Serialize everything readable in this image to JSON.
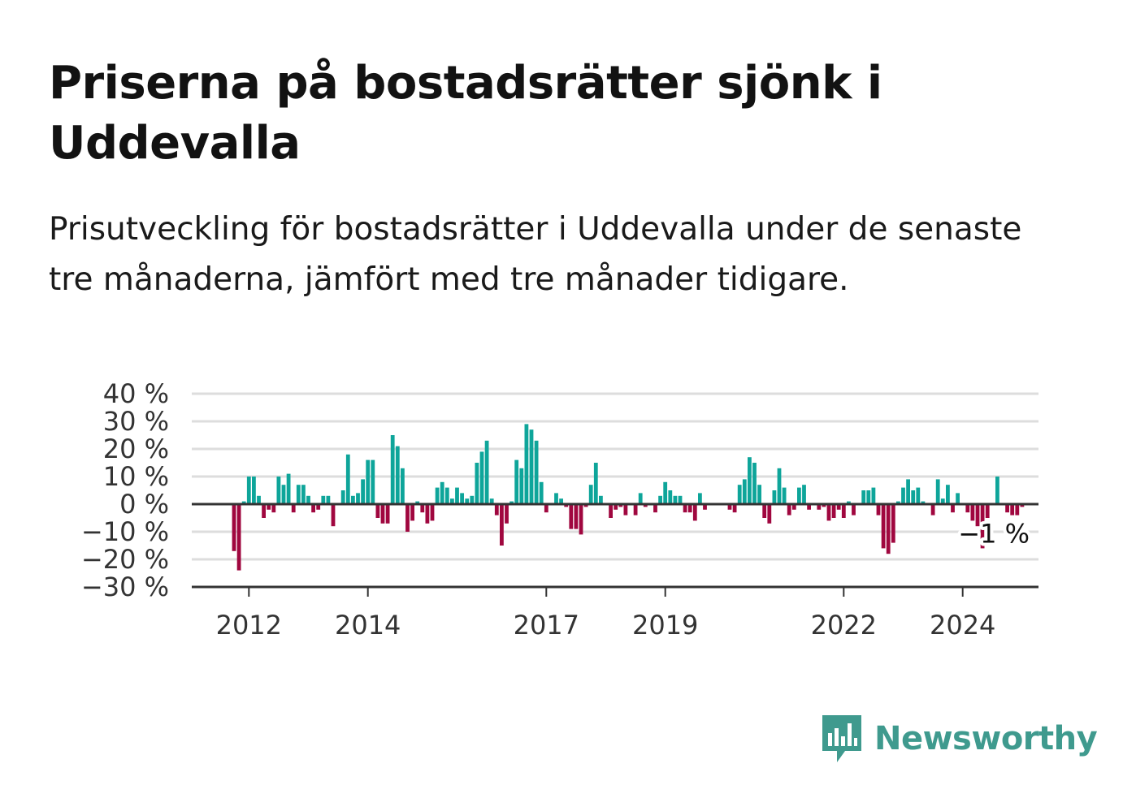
{
  "title": "Priserna på bostadsrätter sjönk i Uddevalla",
  "subtitle": "Prisutveckling för bostadsrätter i Uddevalla under de senaste tre månaderna, jämfört med tre månader tidigare.",
  "brand": {
    "name": "Newsworthy",
    "icon": "newsworthy-logo-icon",
    "color": "#3f9a8e"
  },
  "colors": {
    "positive": "#0ea59a",
    "negative": "#a0073f",
    "grid": "#dddddd",
    "axis": "#333333"
  },
  "chart_data": {
    "type": "bar",
    "unit": "%",
    "y_ticks": [
      40,
      30,
      20,
      10,
      0,
      -10,
      -20,
      -30
    ],
    "y_tick_labels": [
      "40 %",
      "30 %",
      "20 %",
      "10 %",
      "0 %",
      "−10 %",
      "−20 %",
      "−30 %"
    ],
    "ylim": [
      -30,
      40
    ],
    "x_ticks": [
      "2012",
      "2014",
      "2017",
      "2019",
      "2022",
      "2024"
    ],
    "start": "2011-10",
    "grid": true,
    "last_value_label": "−1 %",
    "values": [
      -17,
      -24,
      1,
      10,
      10,
      3,
      -5,
      -2,
      -3,
      10,
      7,
      11,
      -3,
      7,
      7,
      3,
      -3,
      -2,
      3,
      3,
      -8,
      0,
      5,
      18,
      3,
      4,
      9,
      16,
      16,
      -5,
      -7,
      -7,
      25,
      21,
      13,
      -10,
      -6,
      1,
      -3,
      -7,
      -6,
      6,
      8,
      6,
      2,
      6,
      4,
      2,
      3,
      15,
      19,
      23,
      2,
      -4,
      -15,
      -7,
      1,
      16,
      13,
      29,
      27,
      23,
      8,
      -3,
      0,
      4,
      2,
      -1,
      -9,
      -9,
      -11,
      -1,
      7,
      15,
      3,
      0,
      -5,
      -2,
      -1,
      -4,
      0,
      -4,
      4,
      -1,
      0,
      -3,
      3,
      8,
      5,
      3,
      3,
      -3,
      -3,
      -6,
      4,
      -2,
      0,
      0,
      0,
      0,
      -2,
      -3,
      7,
      9,
      17,
      15,
      7,
      -5,
      -7,
      5,
      13,
      6,
      -4,
      -2,
      6,
      7,
      -2,
      0,
      -2,
      -1,
      -6,
      -5,
      -2,
      -5,
      1,
      -4,
      0,
      5,
      5,
      6,
      -4,
      -16,
      -18,
      -14,
      1,
      6,
      9,
      5,
      6,
      1,
      0,
      -4,
      9,
      2,
      7,
      -3,
      4,
      0,
      -3,
      -6,
      -8,
      -16,
      -5,
      0,
      10,
      0,
      -3,
      -4,
      -4,
      -1
    ]
  }
}
